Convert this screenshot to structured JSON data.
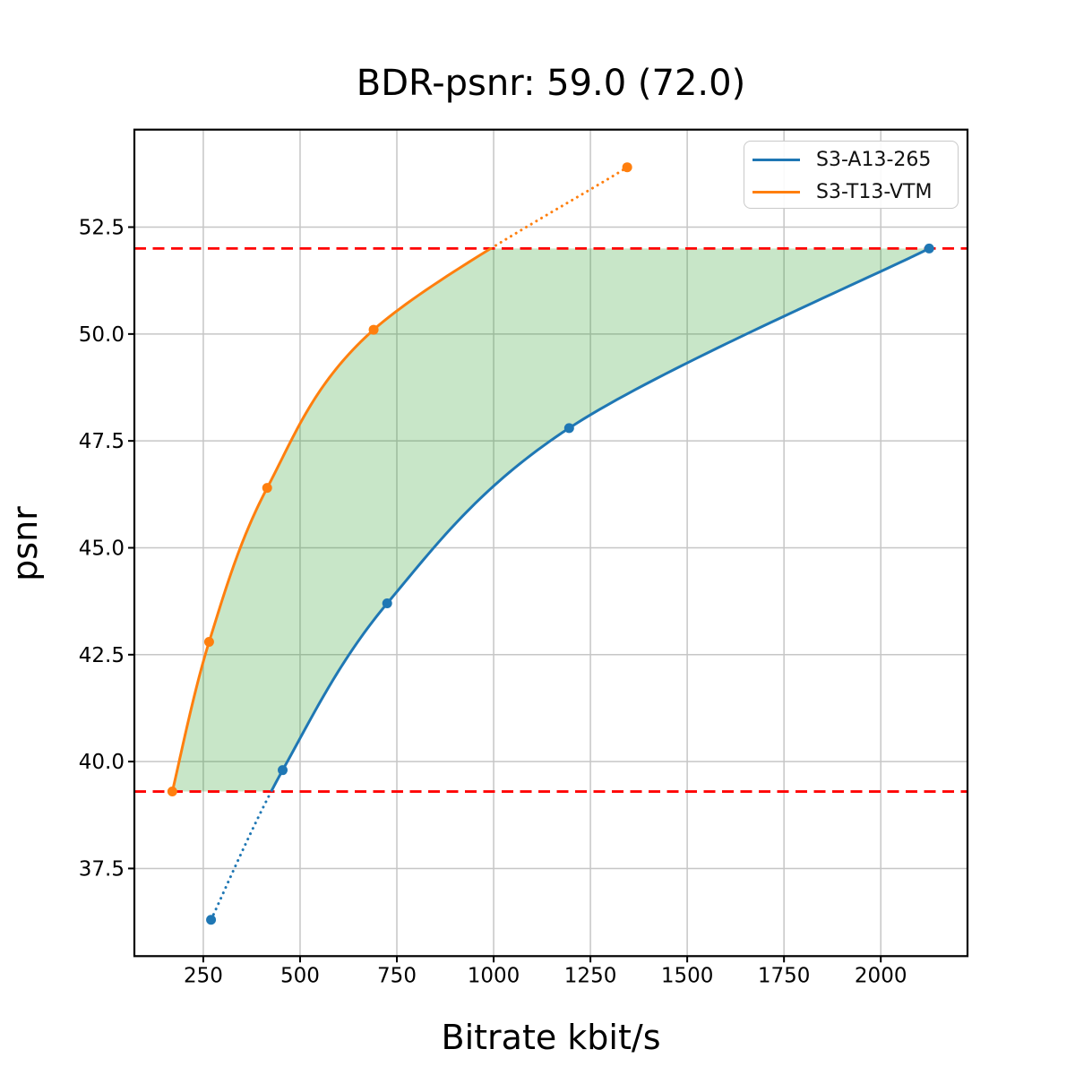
{
  "chart_data": {
    "type": "line",
    "title": "BDR-psnr: 59.0 (72.0)",
    "xlabel": "Bitrate kbit/s",
    "ylabel": "psnr",
    "xlim": [
      72,
      2224
    ],
    "ylim": [
      35.45,
      54.78
    ],
    "xticks": [
      250,
      500,
      750,
      1000,
      1250,
      1500,
      1750,
      2000
    ],
    "yticks": [
      37.5,
      40.0,
      42.5,
      45.0,
      47.5,
      50.0,
      52.5
    ],
    "grid": true,
    "legend_position": "upper-right",
    "series": [
      {
        "name": "S3-A13-265",
        "color": "#1f77b4",
        "x": [
          270,
          455,
          725,
          1195,
          2125
        ],
        "y": [
          36.3,
          39.8,
          43.7,
          47.8,
          52.0
        ]
      },
      {
        "name": "S3-T13-VTM",
        "color": "#ff7f0e",
        "x": [
          170,
          265,
          415,
          690,
          1345
        ],
        "y": [
          39.3,
          42.8,
          46.4,
          50.1,
          53.9
        ]
      }
    ],
    "overlap_lines": {
      "color": "#ff0000",
      "style": "dashed",
      "lower": 39.3,
      "upper": 52.0
    },
    "shaded_region": {
      "color": "#2ca02c",
      "opacity": 0.26
    }
  }
}
